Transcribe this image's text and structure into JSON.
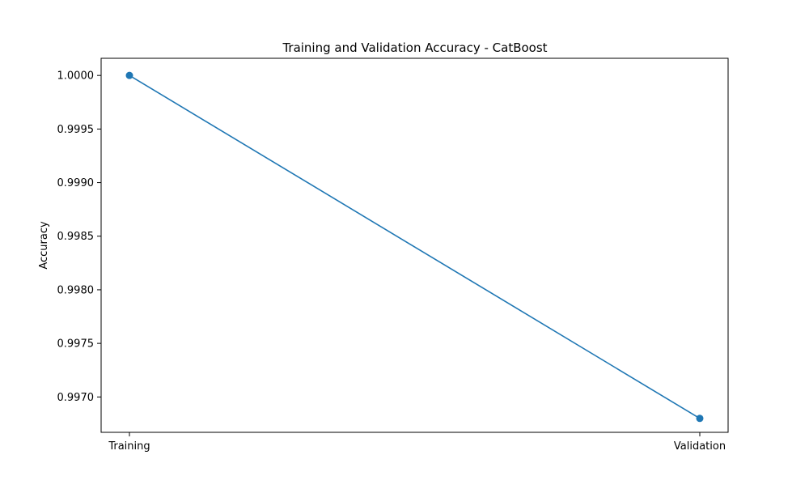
{
  "chart_data": {
    "type": "line",
    "title": "Training and Validation Accuracy - CatBoost",
    "xlabel": "",
    "ylabel": "Accuracy",
    "categories": [
      "Training",
      "Validation"
    ],
    "series": [
      {
        "values": [
          1.0,
          0.9968
        ],
        "color": "#1f77b4",
        "marker": "circle"
      }
    ],
    "ylim": [
      0.99667,
      1.00016
    ],
    "yticks": [
      "0.9970",
      "0.9975",
      "0.9980",
      "0.9985",
      "0.9990",
      "0.9995",
      "1.0000"
    ],
    "grid": false,
    "legend": "none"
  }
}
